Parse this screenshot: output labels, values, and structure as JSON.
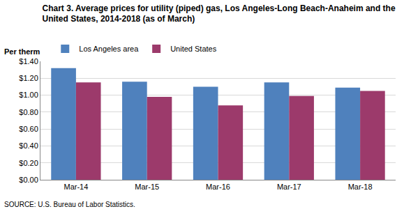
{
  "chart_data": {
    "type": "bar",
    "title": [
      "Chart 3. Average prices for utility (piped) gas, Los Angeles-Long Beach-Anaheim and the",
      "United States, 2014-2018 (as of March)"
    ],
    "y_label": "Per therm",
    "source": "SOURCE: U.S. Bureau of Labor Statistics.",
    "categories": [
      "Mar-14",
      "Mar-15",
      "Mar-16",
      "Mar-17",
      "Mar-18"
    ],
    "series": [
      {
        "name": "Los Angeles area",
        "color": "#4f81bd",
        "values": [
          1.32,
          1.16,
          1.1,
          1.15,
          1.09
        ]
      },
      {
        "name": "United States",
        "color": "#9c3a6b",
        "values": [
          1.15,
          0.98,
          0.88,
          0.99,
          1.05
        ]
      }
    ],
    "ylim": [
      0,
      1.4
    ],
    "yticks": [
      {
        "value": 0,
        "label": "$0.00"
      },
      {
        "value": 0.2,
        "label": "$0.20"
      },
      {
        "value": 0.4,
        "label": "$0.40"
      },
      {
        "value": 0.6,
        "label": "$0.60"
      },
      {
        "value": 0.8,
        "label": "$0.80"
      },
      {
        "value": 1.0,
        "label": "$1.00"
      },
      {
        "value": 1.2,
        "label": "$1.20"
      },
      {
        "value": 1.4,
        "label": "$1.40"
      }
    ],
    "grid": true,
    "legend": "top left"
  }
}
